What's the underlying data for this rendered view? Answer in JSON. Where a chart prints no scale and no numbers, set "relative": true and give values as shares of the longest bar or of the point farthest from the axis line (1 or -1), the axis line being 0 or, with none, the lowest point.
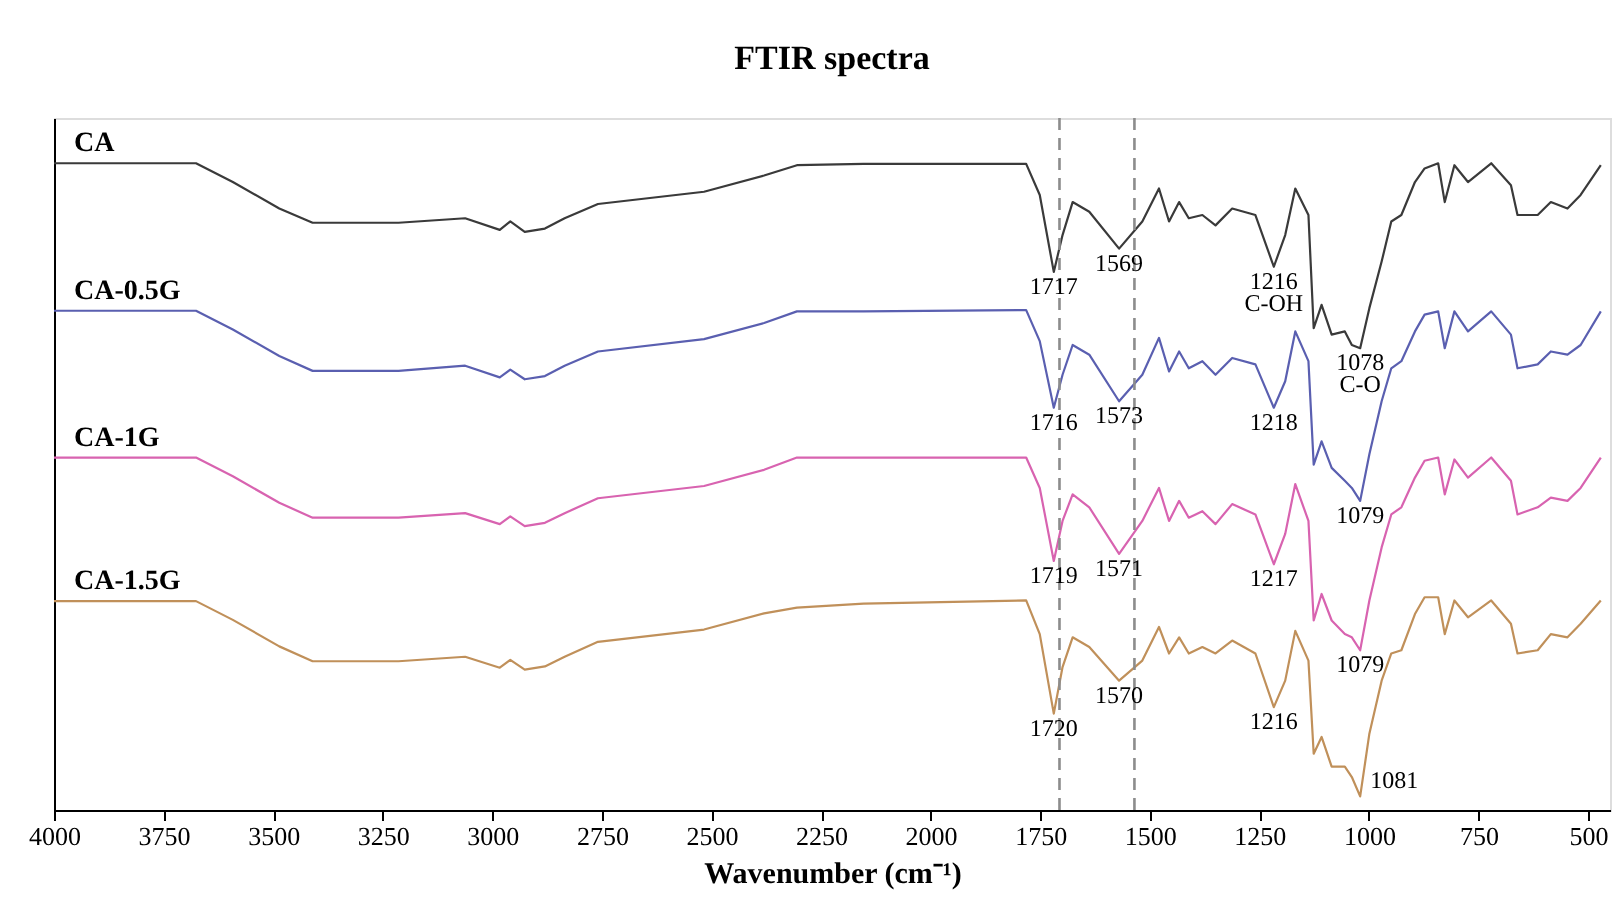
{
  "chart_data": {
    "type": "line",
    "title": "FTIR spectra",
    "xlabel": "Wavenumber (cm⁻¹)",
    "relative": true,
    "grid": false,
    "legend": false,
    "marker": "none",
    "line_style": "solid",
    "xlim": [
      4000,
      450
    ],
    "xticks": [
      4000,
      3750,
      3500,
      3250,
      3000,
      2750,
      2500,
      2250,
      2000,
      1750,
      1500,
      1250,
      1000,
      750,
      500
    ],
    "x": [
      4000,
      3676,
      3592,
      3486,
      3410,
      3214,
      3062,
      2983,
      2959,
      2926,
      2880,
      2835,
      2759,
      2517,
      2380,
      2305,
      2153,
      1782,
      1751,
      1719,
      1699,
      1676,
      1638,
      1570,
      1517,
      1479,
      1456,
      1433,
      1411,
      1380,
      1350,
      1312,
      1259,
      1217,
      1191,
      1168,
      1138,
      1126,
      1108,
      1085,
      1055,
      1039,
      1020,
      999,
      971,
      949,
      926,
      895,
      873,
      842,
      827,
      805,
      774,
      721,
      676,
      661,
      615,
      585,
      547,
      517,
      471
    ],
    "series": [
      {
        "name": "CA",
        "color": "#3a3a3a",
        "values": [
          1.0,
          1.0,
          0.971,
          0.93,
          0.908,
          0.908,
          0.915,
          0.897,
          0.91,
          0.894,
          0.899,
          0.915,
          0.937,
          0.956,
          0.981,
          0.997,
          0.999,
          0.999,
          0.951,
          0.832,
          0.889,
          0.94,
          0.925,
          0.868,
          0.91,
          0.961,
          0.91,
          0.94,
          0.915,
          0.92,
          0.904,
          0.93,
          0.92,
          0.84,
          0.889,
          0.961,
          0.92,
          0.745,
          0.781,
          0.735,
          0.74,
          0.719,
          0.714,
          0.776,
          0.848,
          0.91,
          0.92,
          0.971,
          0.992,
          1.0,
          0.94,
          0.997,
          0.971,
          1.0,
          0.966,
          0.92,
          0.92,
          0.94,
          0.93,
          0.951,
          0.997
        ]
      },
      {
        "name": "CA-0.5G",
        "color": "#5a5fb0",
        "values": [
          0.772,
          0.772,
          0.743,
          0.702,
          0.679,
          0.679,
          0.687,
          0.669,
          0.681,
          0.666,
          0.671,
          0.687,
          0.709,
          0.728,
          0.753,
          0.771,
          0.771,
          0.773,
          0.725,
          0.622,
          0.673,
          0.719,
          0.704,
          0.632,
          0.673,
          0.73,
          0.678,
          0.709,
          0.683,
          0.694,
          0.673,
          0.699,
          0.689,
          0.622,
          0.663,
          0.74,
          0.694,
          0.534,
          0.57,
          0.529,
          0.509,
          0.498,
          0.478,
          0.55,
          0.632,
          0.683,
          0.694,
          0.74,
          0.766,
          0.771,
          0.714,
          0.771,
          0.74,
          0.771,
          0.735,
          0.683,
          0.689,
          0.709,
          0.704,
          0.719,
          0.771
        ]
      },
      {
        "name": "CA-1G",
        "color": "#d863b0",
        "values": [
          0.545,
          0.545,
          0.516,
          0.475,
          0.452,
          0.452,
          0.459,
          0.442,
          0.454,
          0.439,
          0.444,
          0.459,
          0.482,
          0.501,
          0.526,
          0.545,
          0.545,
          0.545,
          0.498,
          0.385,
          0.447,
          0.488,
          0.468,
          0.396,
          0.447,
          0.498,
          0.447,
          0.478,
          0.452,
          0.462,
          0.442,
          0.473,
          0.457,
          0.38,
          0.427,
          0.504,
          0.447,
          0.293,
          0.334,
          0.293,
          0.272,
          0.267,
          0.247,
          0.324,
          0.406,
          0.457,
          0.468,
          0.514,
          0.54,
          0.545,
          0.488,
          0.542,
          0.514,
          0.545,
          0.509,
          0.457,
          0.468,
          0.483,
          0.478,
          0.498,
          0.545
        ]
      },
      {
        "name": "CA-1.5G",
        "color": "#c0905a",
        "values": [
          0.323,
          0.323,
          0.294,
          0.253,
          0.23,
          0.23,
          0.237,
          0.22,
          0.232,
          0.217,
          0.222,
          0.237,
          0.26,
          0.279,
          0.304,
          0.313,
          0.319,
          0.324,
          0.272,
          0.149,
          0.221,
          0.267,
          0.252,
          0.2,
          0.231,
          0.283,
          0.242,
          0.267,
          0.242,
          0.252,
          0.242,
          0.262,
          0.242,
          0.159,
          0.2,
          0.277,
          0.231,
          0.087,
          0.113,
          0.067,
          0.067,
          0.051,
          0.021,
          0.118,
          0.2,
          0.242,
          0.247,
          0.303,
          0.329,
          0.329,
          0.272,
          0.324,
          0.298,
          0.324,
          0.288,
          0.242,
          0.247,
          0.272,
          0.267,
          0.288,
          0.324
        ]
      }
    ],
    "ref_lines": [
      {
        "axis": "x",
        "value": 1706,
        "color": "#8c8c8c",
        "line_style": "dashed"
      },
      {
        "axis": "x",
        "value": 1535,
        "color": "#8c8c8c",
        "line_style": "dashed"
      }
    ],
    "annotations": [
      {
        "text": "1717",
        "x": 1719,
        "y": 0.832
      },
      {
        "text": "1569",
        "x": 1570,
        "y": 0.868
      },
      {
        "text": "1216\nC-OH",
        "x": 1217,
        "y": 0.84
      },
      {
        "text": "1078\nC-O",
        "x": 1020,
        "y": 0.714
      },
      {
        "text": "1716",
        "x": 1719,
        "y": 0.622
      },
      {
        "text": "1573",
        "x": 1570,
        "y": 0.632
      },
      {
        "text": "1218",
        "x": 1217,
        "y": 0.622
      },
      {
        "text": "1079",
        "x": 1020,
        "y": 0.478
      },
      {
        "text": "1719",
        "x": 1719,
        "y": 0.385
      },
      {
        "text": "1571",
        "x": 1570,
        "y": 0.396
      },
      {
        "text": "1217",
        "x": 1217,
        "y": 0.38
      },
      {
        "text": "1079",
        "x": 1020,
        "y": 0.247
      },
      {
        "text": "1720",
        "x": 1719,
        "y": 0.149
      },
      {
        "text": "1570",
        "x": 1570,
        "y": 0.2
      },
      {
        "text": "1216",
        "x": 1217,
        "y": 0.159
      },
      {
        "text": "1081",
        "x": 1020,
        "y": 0.021
      }
    ]
  }
}
